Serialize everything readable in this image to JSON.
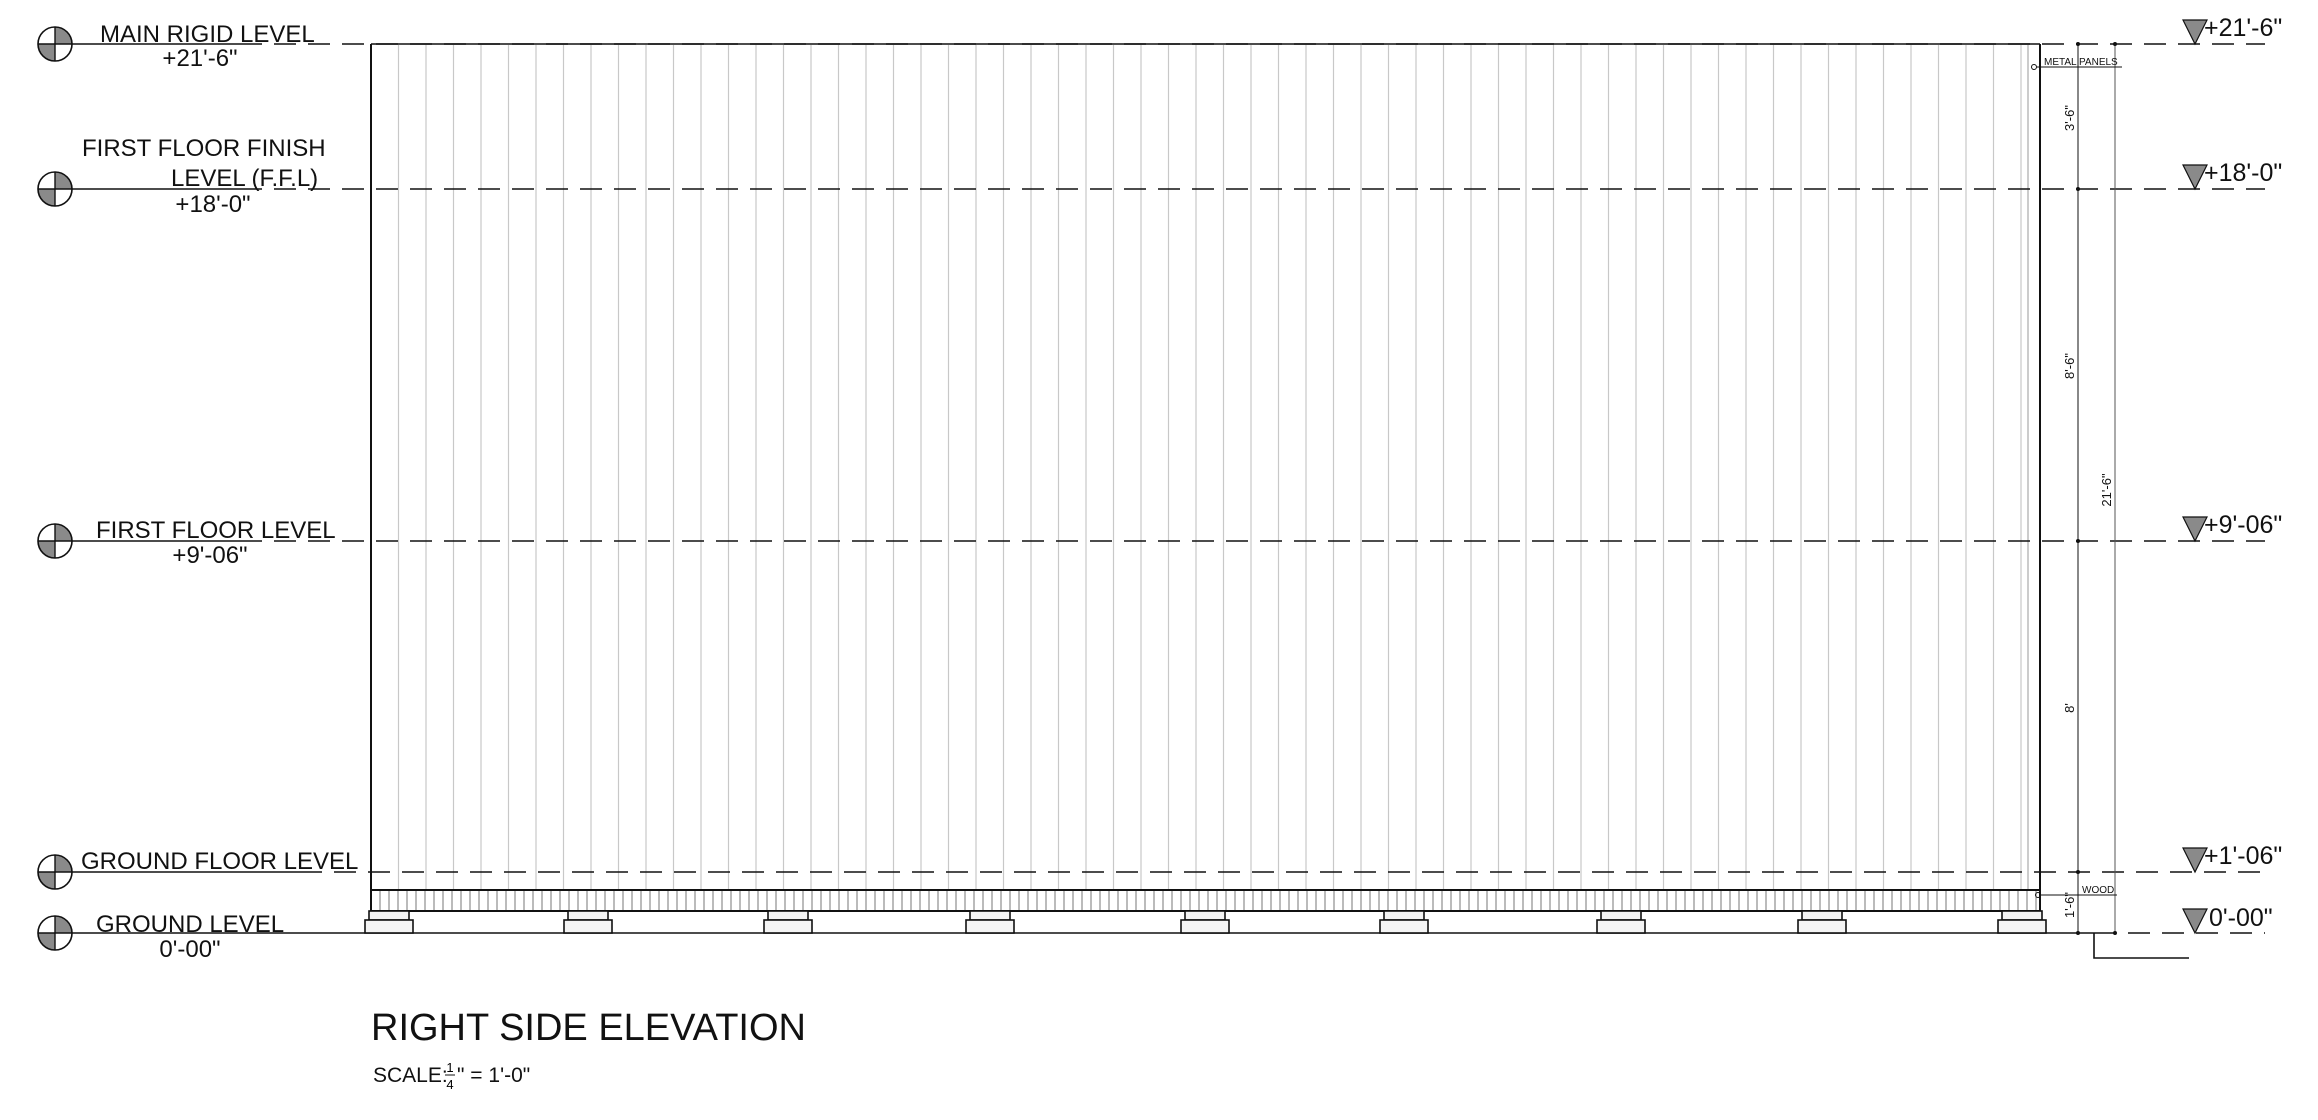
{
  "drawing": {
    "title": "RIGHT SIDE ELEVATION",
    "scale_prefix": "SCALE:",
    "scale_num": "1",
    "scale_den": "4",
    "scale_suffix": "\" = 1'-0\""
  },
  "levels_left": [
    {
      "name": "MAIN RIGID LEVEL",
      "value": "+21'-6\""
    },
    {
      "name_line1": "FIRST FLOOR FINISH",
      "name_line2": "LEVEL (F.F.L)",
      "value": "+18'-0\""
    },
    {
      "name": "FIRST FLOOR LEVEL",
      "value": "+9'-06\""
    },
    {
      "name": "GROUND FLOOR LEVEL"
    },
    {
      "name": "GROUND LEVEL",
      "value": "0'-00\""
    }
  ],
  "levels_right": [
    "+21'-6\"",
    "+18'-0\"",
    "+9'-06\"",
    "+1'-06\"",
    "0'-00\""
  ],
  "dimensions": {
    "top": "3'-6\"",
    "middle": "8'-6\"",
    "lower": "8'",
    "base": "1'-6\"",
    "overall": "21'-6\""
  },
  "notes": {
    "metal_panels": "METAL PANELS",
    "wood": "WOOD"
  },
  "colors": {
    "line": "#111111",
    "panel_line": "#c8c8c8",
    "marker_fill": "#8a8a8a"
  }
}
